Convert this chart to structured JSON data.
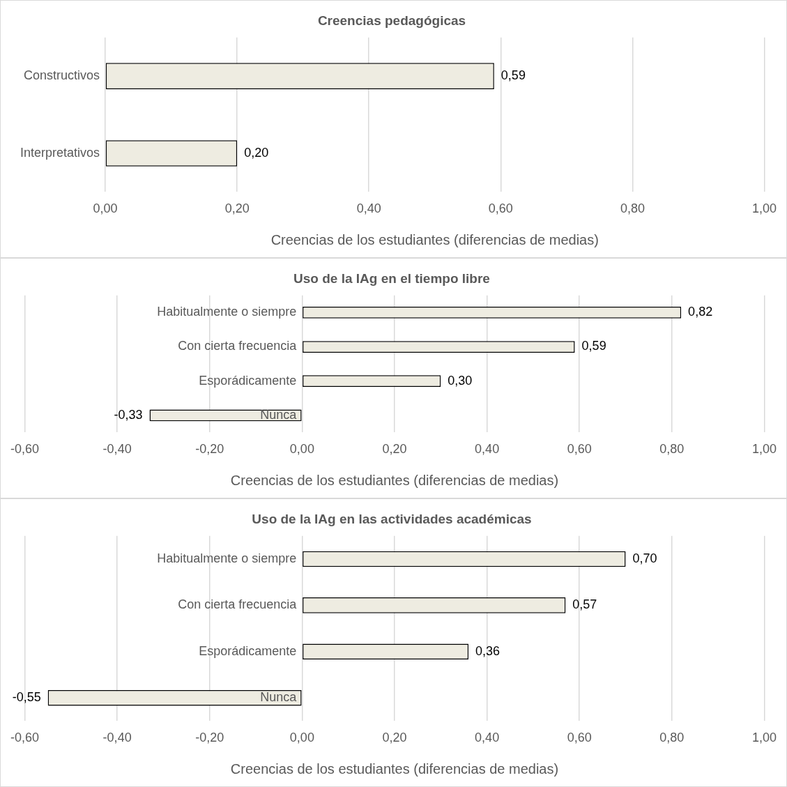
{
  "chart_data": [
    {
      "type": "bar",
      "orientation": "horizontal",
      "title": "Creencias pedagógicas",
      "xlabel": "Creencias de los estudiantes (diferencias de medias)",
      "categories": [
        "Constructivos",
        "Interpretativos"
      ],
      "values": [
        0.59,
        0.2
      ],
      "value_labels": [
        "0,59",
        "0,20"
      ],
      "color": "#eeece1",
      "xlim": [
        0,
        1
      ],
      "xticks": [
        {
          "value": 0,
          "label": "0,00"
        },
        {
          "value": 0.2,
          "label": "0,20"
        },
        {
          "value": 0.4,
          "label": "0,40"
        },
        {
          "value": 0.6,
          "label": "0,60"
        },
        {
          "value": 0.8,
          "label": "0,80"
        },
        {
          "value": 1,
          "label": "1,00"
        }
      ],
      "grid": "x",
      "legend": false
    },
    {
      "type": "bar",
      "orientation": "horizontal",
      "title": "Uso de la IAg en el tiempo libre",
      "xlabel": "Creencias de los estudiantes (diferencias de medias)",
      "categories": [
        "Habitualmente o siempre",
        "Con cierta frecuencia",
        "Esporádicamente",
        "Nunca"
      ],
      "values": [
        0.82,
        0.59,
        0.3,
        -0.33
      ],
      "value_labels": [
        "0,82",
        "0,59",
        "0,30",
        "-0,33"
      ],
      "color": "#eeece1",
      "xlim": [
        -0.6,
        1
      ],
      "xticks": [
        {
          "value": -0.6,
          "label": "-0,60"
        },
        {
          "value": -0.4,
          "label": "-0,40"
        },
        {
          "value": -0.2,
          "label": "-0,20"
        },
        {
          "value": 0,
          "label": "0,00"
        },
        {
          "value": 0.2,
          "label": "0,20"
        },
        {
          "value": 0.4,
          "label": "0,40"
        },
        {
          "value": 0.6,
          "label": "0,60"
        },
        {
          "value": 0.8,
          "label": "0,80"
        },
        {
          "value": 1,
          "label": "1,00"
        }
      ],
      "grid": "x",
      "legend": false
    },
    {
      "type": "bar",
      "orientation": "horizontal",
      "title": "Uso de la IAg en las actividades académicas",
      "xlabel": "Creencias de los estudiantes (diferencias de medias)",
      "categories": [
        "Habitualmente o siempre",
        "Con cierta frecuencia",
        "Esporádicamente",
        "Nunca"
      ],
      "values": [
        0.7,
        0.57,
        0.36,
        -0.55
      ],
      "value_labels": [
        "0,70",
        "0,57",
        "0,36",
        "-0,55"
      ],
      "color": "#eeece1",
      "xlim": [
        -0.6,
        1
      ],
      "xticks": [
        {
          "value": -0.6,
          "label": "-0,60"
        },
        {
          "value": -0.4,
          "label": "-0,40"
        },
        {
          "value": -0.2,
          "label": "-0,20"
        },
        {
          "value": 0,
          "label": "0,00"
        },
        {
          "value": 0.2,
          "label": "0,20"
        },
        {
          "value": 0.4,
          "label": "0,40"
        },
        {
          "value": 0.6,
          "label": "0,60"
        },
        {
          "value": 0.8,
          "label": "0,80"
        },
        {
          "value": 1,
          "label": "1,00"
        }
      ],
      "grid": "x",
      "legend": false
    }
  ]
}
